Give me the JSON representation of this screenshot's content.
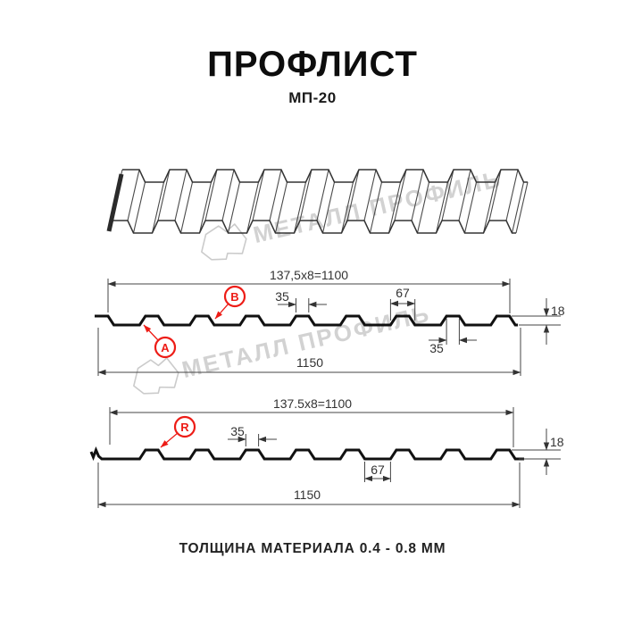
{
  "header": {
    "title": "ПРОФЛИСТ",
    "subtitle": "МП-20"
  },
  "watermark": {
    "brand": "МЕТАЛЛ ПРОФИЛЬ"
  },
  "drawing": {
    "section1": {
      "labels": {
        "a": "A",
        "b": "B"
      },
      "dims": {
        "pitch": "137,5x8=1100",
        "rib_top_width": "35",
        "rib_base_width": "67",
        "height": "18",
        "rib_top_width_b": "35",
        "overall_width": "1150"
      }
    },
    "section2": {
      "labels": {
        "r": "R"
      },
      "dims": {
        "pitch": "137.5x8=1100",
        "rib_top_width": "35",
        "valley_width": "67",
        "height": "18",
        "overall_width": "1150"
      }
    }
  },
  "footer": {
    "thickness_note": "ТОЛЩИНА МАТЕРИАЛА 0.4 - 0.8 ММ"
  },
  "colors": {
    "accent_red": "#ed1c16",
    "profile_line": "#111111",
    "dimension_line": "#3a3a3a",
    "sketch_line": "#3f3f3f",
    "watermark_gray": "#d2d2d2"
  }
}
